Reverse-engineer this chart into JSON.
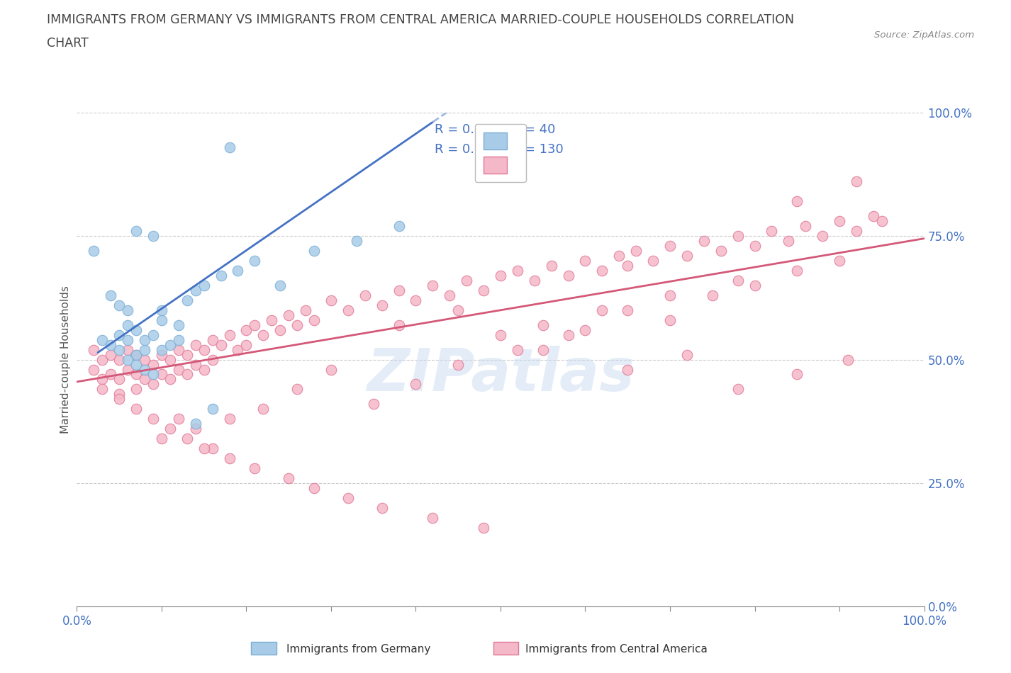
{
  "title_line1": "IMMIGRANTS FROM GERMANY VS IMMIGRANTS FROM CENTRAL AMERICA MARRIED-COUPLE HOUSEHOLDS CORRELATION",
  "title_line2": "CHART",
  "source": "Source: ZipAtlas.com",
  "watermark": "ZIPatlas",
  "ylabel": "Married-couple Households",
  "xlim": [
    0,
    1
  ],
  "ylim": [
    0,
    1
  ],
  "xtick_positions": [
    0.0,
    0.1,
    0.2,
    0.3,
    0.4,
    0.5,
    0.6,
    0.7,
    0.8,
    0.9,
    1.0
  ],
  "xtick_labels_show": {
    "0.0": "0.0%",
    "1.0": "100.0%"
  },
  "ytick_values": [
    0.0,
    0.25,
    0.5,
    0.75,
    1.0
  ],
  "ytick_labels": [
    "0.0%",
    "25.0%",
    "50.0%",
    "75.0%",
    "100.0%"
  ],
  "germany_color": "#A8CCE8",
  "germany_edge": "#7AADD4",
  "central_america_color": "#F5B8C8",
  "central_america_edge": "#E07898",
  "germany_R": 0.478,
  "germany_N": 40,
  "central_america_R": 0.415,
  "central_america_N": 130,
  "legend_label_germany": "Immigrants from Germany",
  "legend_label_central_america": "Immigrants from Central America",
  "grid_color": "#CCCCCC",
  "title_color": "#444444",
  "axis_tick_color": "#4472C4",
  "blue_line_color": "#4472C4",
  "blue_dash_color": "#A0B8E0",
  "pink_line_color": "#D45878",
  "germany_line_xmin": 0.025,
  "germany_line_xmax": 0.42,
  "germany_line_dash_xmax": 0.95,
  "germany_line_slope": 1.18,
  "germany_line_intercept": 0.485,
  "central_line_xmin": 0.0,
  "central_line_xmax": 1.0,
  "central_line_slope": 0.29,
  "central_line_intercept": 0.455,
  "germany_scatter_x": [
    0.18,
    0.02,
    0.07,
    0.09,
    0.04,
    0.05,
    0.06,
    0.06,
    0.05,
    0.03,
    0.04,
    0.05,
    0.06,
    0.07,
    0.08,
    0.07,
    0.08,
    0.1,
    0.09,
    0.1,
    0.12,
    0.13,
    0.14,
    0.15,
    0.17,
    0.19,
    0.21,
    0.24,
    0.28,
    0.33,
    0.38,
    0.06,
    0.07,
    0.08,
    0.09,
    0.1,
    0.11,
    0.12,
    0.14,
    0.16
  ],
  "germany_scatter_y": [
    0.93,
    0.72,
    0.76,
    0.75,
    0.63,
    0.61,
    0.6,
    0.57,
    0.55,
    0.54,
    0.53,
    0.52,
    0.54,
    0.51,
    0.52,
    0.56,
    0.54,
    0.58,
    0.55,
    0.6,
    0.57,
    0.62,
    0.64,
    0.65,
    0.67,
    0.68,
    0.7,
    0.65,
    0.72,
    0.74,
    0.77,
    0.5,
    0.49,
    0.48,
    0.47,
    0.52,
    0.53,
    0.54,
    0.37,
    0.4
  ],
  "central_america_scatter_x": [
    0.02,
    0.02,
    0.03,
    0.03,
    0.04,
    0.04,
    0.05,
    0.05,
    0.05,
    0.06,
    0.06,
    0.07,
    0.07,
    0.07,
    0.08,
    0.08,
    0.09,
    0.09,
    0.1,
    0.1,
    0.11,
    0.11,
    0.12,
    0.12,
    0.13,
    0.13,
    0.14,
    0.14,
    0.15,
    0.15,
    0.16,
    0.16,
    0.17,
    0.18,
    0.19,
    0.2,
    0.2,
    0.21,
    0.22,
    0.23,
    0.24,
    0.25,
    0.26,
    0.27,
    0.28,
    0.3,
    0.32,
    0.34,
    0.36,
    0.38,
    0.4,
    0.42,
    0.44,
    0.46,
    0.48,
    0.5,
    0.5,
    0.52,
    0.54,
    0.56,
    0.58,
    0.6,
    0.62,
    0.64,
    0.65,
    0.66,
    0.68,
    0.7,
    0.72,
    0.74,
    0.76,
    0.78,
    0.8,
    0.82,
    0.84,
    0.86,
    0.88,
    0.9,
    0.92,
    0.94,
    0.1,
    0.12,
    0.14,
    0.16,
    0.18,
    0.22,
    0.26,
    0.3,
    0.35,
    0.4,
    0.45,
    0.55,
    0.6,
    0.65,
    0.7,
    0.75,
    0.8,
    0.85,
    0.9,
    0.95,
    0.03,
    0.05,
    0.07,
    0.09,
    0.11,
    0.13,
    0.15,
    0.18,
    0.21,
    0.25,
    0.28,
    0.32,
    0.36,
    0.42,
    0.48,
    0.55,
    0.62,
    0.7,
    0.78,
    0.85,
    0.92,
    0.38,
    0.45,
    0.52,
    0.58,
    0.65,
    0.72,
    0.78,
    0.85,
    0.91
  ],
  "central_america_scatter_y": [
    0.52,
    0.48,
    0.5,
    0.46,
    0.51,
    0.47,
    0.5,
    0.46,
    0.43,
    0.52,
    0.48,
    0.51,
    0.47,
    0.44,
    0.5,
    0.46,
    0.49,
    0.45,
    0.51,
    0.47,
    0.5,
    0.46,
    0.52,
    0.48,
    0.51,
    0.47,
    0.53,
    0.49,
    0.52,
    0.48,
    0.54,
    0.5,
    0.53,
    0.55,
    0.52,
    0.56,
    0.53,
    0.57,
    0.55,
    0.58,
    0.56,
    0.59,
    0.57,
    0.6,
    0.58,
    0.62,
    0.6,
    0.63,
    0.61,
    0.64,
    0.62,
    0.65,
    0.63,
    0.66,
    0.64,
    0.67,
    0.55,
    0.68,
    0.66,
    0.69,
    0.67,
    0.7,
    0.68,
    0.71,
    0.69,
    0.72,
    0.7,
    0.73,
    0.71,
    0.74,
    0.72,
    0.75,
    0.73,
    0.76,
    0.74,
    0.77,
    0.75,
    0.78,
    0.76,
    0.79,
    0.34,
    0.38,
    0.36,
    0.32,
    0.38,
    0.4,
    0.44,
    0.48,
    0.41,
    0.45,
    0.49,
    0.52,
    0.56,
    0.6,
    0.58,
    0.63,
    0.65,
    0.68,
    0.7,
    0.78,
    0.44,
    0.42,
    0.4,
    0.38,
    0.36,
    0.34,
    0.32,
    0.3,
    0.28,
    0.26,
    0.24,
    0.22,
    0.2,
    0.18,
    0.16,
    0.57,
    0.6,
    0.63,
    0.66,
    0.82,
    0.86,
    0.57,
    0.6,
    0.52,
    0.55,
    0.48,
    0.51,
    0.44,
    0.47,
    0.5
  ]
}
